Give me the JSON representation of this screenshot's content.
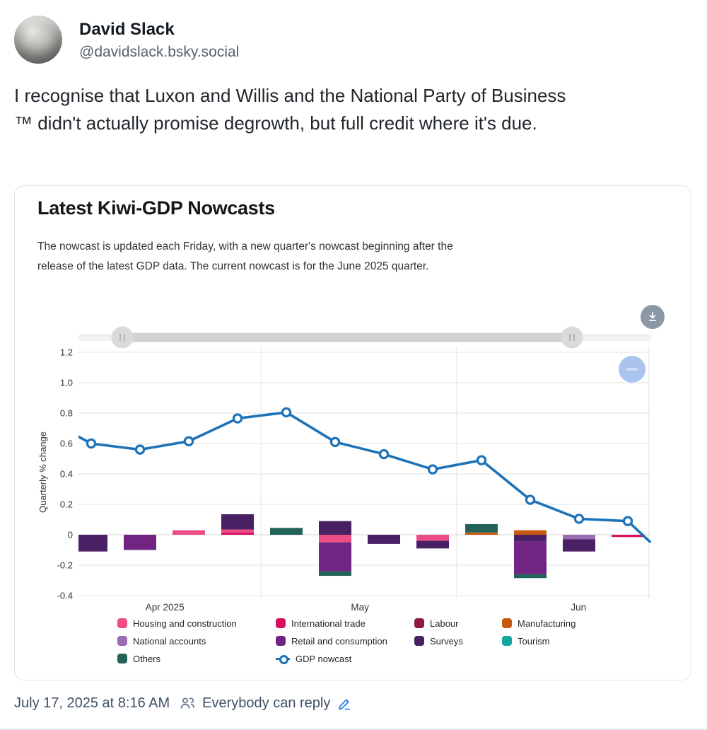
{
  "post": {
    "author_name": "David Slack",
    "author_handle": "@davidslack.bsky.social",
    "body": "I recognise that Luxon and Willis and the National Party of Business ™ didn't actually promise degrowth, but full credit where it's due.",
    "timestamp": "July 17, 2025 at 8:16 AM",
    "reply_setting": "Everybody can reply"
  },
  "card": {
    "title": "Latest Kiwi-GDP Nowcasts",
    "description": "The nowcast is updated each Friday, with a new quarter's nowcast beginning after the release of the latest GDP data. The current nowcast is for the June 2025 quarter.",
    "range_slider": {
      "left_fraction": 0.0765,
      "right_fraction": 0.8617
    },
    "buttons": {
      "download": "download-chart",
      "zoom_out": "zoom-out"
    }
  },
  "chart_data": {
    "type": "bar",
    "subtype": "stacked-bars-with-line",
    "ylabel": "Quarterly % change",
    "y_ticks": [
      "1.2",
      "1.0",
      "0.8",
      "0.6",
      "0.4",
      "0.2",
      "0",
      "-0.2",
      "-0.4"
    ],
    "y_tick_values": [
      1.2,
      1.0,
      0.8,
      0.6,
      0.4,
      0.2,
      0,
      -0.2,
      -0.4
    ],
    "ylim": [
      -0.45,
      1.26
    ],
    "xlim_weeks": [
      -0.26,
      11.48
    ],
    "x_month_labels": [
      {
        "label": "Apr 2025",
        "week": 1.51
      },
      {
        "label": "May",
        "week": 5.51
      },
      {
        "label": "Jun",
        "week": 9.99
      }
    ],
    "x_gridline_weeks": [
      3.48,
      7.49,
      11.43
    ],
    "series_colors": {
      "housing_and_construction": "#ec4d87",
      "international_trade": "#dc0e60",
      "labour": "#8e1a3e",
      "manufacturing": "#c65b10",
      "national_accounts": "#9a6cb1",
      "retail_and_consumption": "#722483",
      "surveys": "#4a2065",
      "tourism": "#13a7a0",
      "others": "#226259"
    },
    "bars": [
      {
        "week": 0,
        "segments": [
          {
            "series": "surveys",
            "value": -0.11
          }
        ]
      },
      {
        "week": 1,
        "segments": [
          {
            "series": "retail_and_consumption",
            "value": -0.1
          }
        ]
      },
      {
        "week": 2,
        "segments": [
          {
            "series": "housing_and_construction",
            "value": 0.03
          }
        ]
      },
      {
        "week": 3,
        "segments": [
          {
            "series": "international_trade",
            "value": 0.015
          },
          {
            "series": "housing_and_construction",
            "value": 0.02
          },
          {
            "series": "surveys",
            "value": 0.1
          }
        ]
      },
      {
        "week": 4,
        "segments": [
          {
            "series": "others",
            "value": 0.045
          }
        ]
      },
      {
        "week": 5,
        "segments": [
          {
            "series": "surveys",
            "value": 0.09
          },
          {
            "series": "housing_and_construction",
            "value": -0.05
          },
          {
            "series": "retail_and_consumption",
            "value": -0.19
          },
          {
            "series": "others",
            "value": -0.03
          }
        ]
      },
      {
        "week": 6,
        "segments": [
          {
            "series": "surveys",
            "value": -0.06
          }
        ]
      },
      {
        "week": 7,
        "segments": [
          {
            "series": "housing_and_construction",
            "value": -0.04
          },
          {
            "series": "surveys",
            "value": -0.05
          }
        ]
      },
      {
        "week": 8,
        "segments": [
          {
            "series": "manufacturing",
            "value": 0.015
          },
          {
            "series": "others",
            "value": 0.055
          }
        ]
      },
      {
        "week": 9,
        "segments": [
          {
            "series": "manufacturing",
            "value": 0.03
          },
          {
            "series": "surveys",
            "value": -0.045
          },
          {
            "series": "retail_and_consumption",
            "value": -0.215
          },
          {
            "series": "others",
            "value": -0.025
          }
        ]
      },
      {
        "week": 10,
        "segments": [
          {
            "series": "national_accounts",
            "value": -0.03
          },
          {
            "series": "surveys",
            "value": -0.08
          }
        ]
      },
      {
        "week": 11,
        "segments": [
          {
            "series": "international_trade",
            "value": -0.015
          }
        ]
      }
    ],
    "line": {
      "name": "GDP nowcast",
      "color": "#1d72b8",
      "points": [
        {
          "week": -0.26,
          "value": 0.645,
          "marker": false
        },
        {
          "week": 0,
          "value": 0.6,
          "marker": true
        },
        {
          "week": 1,
          "value": 0.56,
          "marker": true
        },
        {
          "week": 2,
          "value": 0.615,
          "marker": true
        },
        {
          "week": 3,
          "value": 0.765,
          "marker": true
        },
        {
          "week": 4,
          "value": 0.805,
          "marker": true
        },
        {
          "week": 5,
          "value": 0.61,
          "marker": true
        },
        {
          "week": 6,
          "value": 0.53,
          "marker": true
        },
        {
          "week": 7,
          "value": 0.43,
          "marker": true
        },
        {
          "week": 8,
          "value": 0.49,
          "marker": true
        },
        {
          "week": 9,
          "value": 0.23,
          "marker": true
        },
        {
          "week": 10,
          "value": 0.105,
          "marker": true
        },
        {
          "week": 11,
          "value": 0.09,
          "marker": true
        },
        {
          "week": 11.45,
          "value": -0.045,
          "marker": false
        }
      ]
    },
    "legend": [
      {
        "label": "Housing and construction",
        "series": "housing_and_construction",
        "type": "bar"
      },
      {
        "label": "International trade",
        "series": "international_trade",
        "type": "bar"
      },
      {
        "label": "Labour",
        "series": "labour",
        "type": "bar"
      },
      {
        "label": "Manufacturing",
        "series": "manufacturing",
        "type": "bar"
      },
      {
        "label": "National accounts",
        "series": "national_accounts",
        "type": "bar"
      },
      {
        "label": "Retail and consumption",
        "series": "retail_and_consumption",
        "type": "bar"
      },
      {
        "label": "Surveys",
        "series": "surveys",
        "type": "bar"
      },
      {
        "label": "Tourism",
        "series": "tourism",
        "type": "bar"
      },
      {
        "label": "Others",
        "series": "others",
        "type": "bar"
      },
      {
        "label": "GDP nowcast",
        "series": "nowcast_line",
        "type": "line"
      }
    ]
  }
}
